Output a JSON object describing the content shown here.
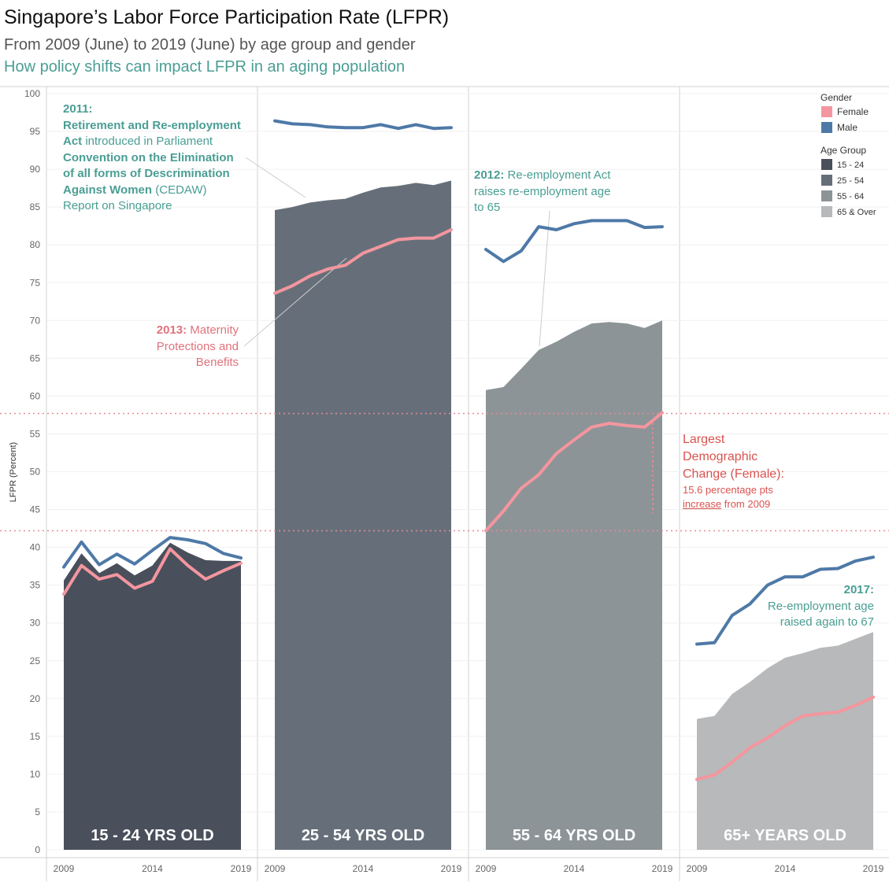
{
  "header": {
    "title": "Singapore’s Labor Force Participation Rate (LFPR)",
    "subtitle": "From 2009 (June) to 2019 (June) by age group and gender",
    "tagline": "How policy shifts can impact LFPR in an aging population"
  },
  "colors": {
    "female": "#f4969f",
    "male": "#4e79a7",
    "g1524": "#4a4f5c",
    "g2554": "#666f79",
    "g5564": "#8d9497",
    "g65": "#b7b9ba",
    "teal": "#4a9e94",
    "pink_text": "#e0737c",
    "red_text": "#d9534f"
  },
  "chart_data": {
    "type": "area",
    "ylabel": "LFPR (Percent)",
    "ylim": [
      0,
      100
    ],
    "yticks": [
      0,
      5,
      10,
      15,
      20,
      25,
      30,
      35,
      40,
      45,
      50,
      55,
      60,
      65,
      70,
      75,
      80,
      85,
      90,
      95,
      100
    ],
    "x": [
      2009,
      2010,
      2011,
      2012,
      2013,
      2014,
      2015,
      2016,
      2017,
      2018,
      2019
    ],
    "xticks": [
      2009,
      2014,
      2019
    ],
    "reference_lines": [
      42.2,
      57.7
    ],
    "legend": {
      "gender_title": "Gender",
      "gender": [
        "Female",
        "Male"
      ],
      "age_title": "Age Group",
      "age": [
        "15 - 24",
        "25 - 54",
        "55 - 64",
        "65 & Over"
      ]
    },
    "panels": [
      {
        "label": "15 - 24 YRS OLD",
        "total": [
          35.6,
          39.2,
          36.6,
          37.9,
          36.3,
          37.6,
          40.6,
          39.3,
          38.3,
          38.2,
          38.2
        ],
        "male": [
          37.4,
          40.7,
          37.7,
          39.1,
          37.8,
          39.6,
          41.3,
          41.0,
          40.5,
          39.2,
          38.6
        ],
        "female": [
          33.8,
          37.6,
          35.8,
          36.4,
          34.6,
          35.5,
          39.8,
          37.6,
          35.8,
          36.9,
          37.9
        ]
      },
      {
        "label": "25 - 54 YRS OLD",
        "total": [
          84.6,
          85.0,
          85.6,
          85.9,
          86.1,
          86.9,
          87.6,
          87.8,
          88.2,
          87.9,
          88.5
        ],
        "male": [
          96.4,
          96.0,
          95.9,
          95.6,
          95.5,
          95.5,
          95.9,
          95.4,
          95.9,
          95.4,
          95.5
        ],
        "female": [
          73.6,
          74.6,
          75.9,
          76.8,
          77.3,
          78.9,
          79.8,
          80.7,
          80.9,
          80.9,
          82.0
        ]
      },
      {
        "label": "55 - 64 YRS OLD",
        "total": [
          60.8,
          61.2,
          63.6,
          66.1,
          67.2,
          68.5,
          69.6,
          69.8,
          69.6,
          69.0,
          70.0
        ],
        "male": [
          79.4,
          77.8,
          79.2,
          82.4,
          82.0,
          82.8,
          83.2,
          83.2,
          83.2,
          82.3,
          82.4
        ],
        "female": [
          42.2,
          44.8,
          47.8,
          49.6,
          52.4,
          54.2,
          55.9,
          56.4,
          56.1,
          55.9,
          57.8
        ]
      },
      {
        "label": "65+ YEARS OLD",
        "total": [
          17.3,
          17.7,
          20.6,
          22.2,
          24.0,
          25.4,
          26.0,
          26.7,
          27.0,
          27.9,
          28.8
        ],
        "male": [
          27.2,
          27.4,
          31.0,
          32.5,
          35.0,
          36.1,
          36.1,
          37.1,
          37.2,
          38.2,
          38.7
        ],
        "female": [
          9.3,
          9.9,
          11.6,
          13.5,
          14.8,
          16.4,
          17.7,
          18.0,
          18.2,
          19.1,
          20.2
        ]
      }
    ],
    "annotations": {
      "a2011": {
        "year": "2011:",
        "l1": "Retirement and Re-employment",
        "l2b": "Act",
        "l2": " introduced in Parliament",
        "l3": "Convention on the Elimination",
        "l4": "of all forms of Descrimination",
        "l5b": "Against Women",
        "l5": " (CEDAW)",
        "l6": "Report on Singapore"
      },
      "a2013": {
        "year": "2013:",
        "l1": " Maternity",
        "l2": "Protections and",
        "l3": "Benefits"
      },
      "a2012": {
        "year": "2012:",
        "l1": " Re-employment Act",
        "l2": "raises re-employment age",
        "l3": "to 65"
      },
      "a2017": {
        "year": "2017:",
        "l1": "Re-employment age",
        "l2": "raised again to 67"
      },
      "largest": {
        "l1": "Largest",
        "l2": "Demographic",
        "l3": "Change (Female):",
        "l4": "15.6 percentage pts",
        "l5u": "increase",
        "l5": " from 2009"
      }
    }
  }
}
